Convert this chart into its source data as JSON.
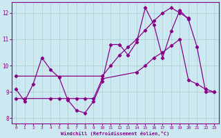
{
  "xlabel": "Windchill (Refroidissement éolien,°C)",
  "background_color": "#cce8f0",
  "line_color": "#880088",
  "grid_color": "#aacccc",
  "xlim": [
    -0.5,
    23.5
  ],
  "ylim": [
    7.8,
    12.4
  ],
  "xticks": [
    0,
    1,
    2,
    3,
    4,
    5,
    6,
    7,
    8,
    9,
    10,
    11,
    12,
    13,
    14,
    15,
    16,
    17,
    18,
    19,
    20,
    21,
    22,
    23
  ],
  "yticks": [
    8,
    9,
    10,
    11,
    12
  ],
  "series1_x": [
    0,
    1,
    2,
    3,
    4,
    5,
    6,
    7,
    8,
    9,
    10,
    11,
    12,
    13,
    14,
    15,
    16,
    17,
    18,
    19,
    20,
    21,
    22,
    23
  ],
  "series1_y": [
    9.1,
    8.65,
    9.3,
    10.3,
    9.85,
    9.55,
    8.7,
    8.3,
    8.2,
    8.65,
    9.4,
    10.8,
    10.8,
    10.4,
    10.9,
    12.2,
    11.55,
    10.3,
    11.3,
    12.1,
    11.75,
    10.7,
    9.0,
    9.0
  ],
  "series2_x": [
    0,
    1,
    4,
    5,
    6,
    7,
    8,
    9,
    10,
    14,
    15,
    16,
    17,
    18,
    19,
    20,
    21,
    22,
    23
  ],
  "series2_y": [
    8.75,
    8.75,
    8.75,
    8.75,
    8.75,
    8.75,
    8.75,
    8.75,
    9.5,
    9.75,
    10.0,
    10.3,
    10.5,
    10.75,
    11.0,
    9.45,
    9.3,
    9.1,
    9.0
  ],
  "series3_x": [
    0,
    10,
    11,
    12,
    13,
    14,
    15,
    16,
    17,
    18,
    19,
    20
  ],
  "series3_y": [
    9.6,
    9.6,
    10.0,
    10.4,
    10.7,
    11.0,
    11.35,
    11.7,
    12.0,
    12.2,
    12.0,
    11.8
  ]
}
